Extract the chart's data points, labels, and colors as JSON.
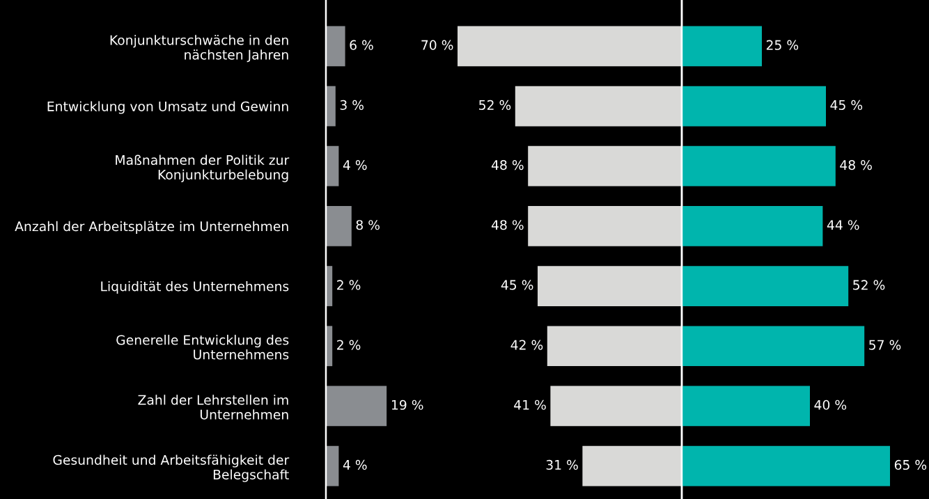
{
  "chart_data": [
    {
      "type": "bar",
      "orientation": "horizontal",
      "categories": [
        "Konjunkturschwäche in den\nnächsten Jahren",
        "Entwicklung von Umsatz und Gewinn",
        "Maßnahmen der Politik zur\nKonjunkturbelebung",
        "Anzahl der Arbeitsplätze im Unternehmen",
        "Liquidität des Unternehmens",
        "Generelle Entwicklung des\nUnternehmens",
        "Zahl der Lehrstellen im\nUnternehmen",
        "Gesundheit und Arbeitsfähigkeit der\nBelegschaft"
      ],
      "series": [
        {
          "color": "#8a8d91",
          "values": [
            6,
            3,
            4,
            8,
            2,
            2,
            19,
            4
          ],
          "value_labels": [
            "6 %",
            "3 %",
            "4 %",
            "8 %",
            "2 %",
            "2 %",
            "19 %",
            "4 %"
          ]
        }
      ],
      "xlim": [
        0,
        19
      ],
      "tick_labels": "y"
    },
    {
      "type": "bar",
      "orientation": "horizontal",
      "categories": [
        null,
        null,
        null,
        null,
        null,
        null,
        null,
        null
      ],
      "series": [
        {
          "color": "#d9d9d7",
          "values": [
            70,
            52,
            48,
            48,
            45,
            42,
            41,
            31
          ],
          "value_labels": [
            "70 %",
            "52 %",
            "48 %",
            "48 %",
            "45 %",
            "42 %",
            "41 %",
            "31 %"
          ]
        }
      ],
      "xlim": [
        70,
        0
      ],
      "tick_labels": false
    },
    {
      "type": "bar",
      "orientation": "horizontal",
      "categories": [
        null,
        null,
        null,
        null,
        null,
        null,
        null,
        null
      ],
      "series": [
        {
          "color": "#00b5ad",
          "values": [
            25,
            45,
            48,
            44,
            52,
            57,
            40,
            65
          ],
          "value_labels": [
            "25 %",
            "45 %",
            "48 %",
            "44 %",
            "52 %",
            "57 %",
            "40 %",
            "65 %"
          ]
        }
      ],
      "xlim": [
        0,
        65
      ],
      "tick_labels": false
    }
  ]
}
